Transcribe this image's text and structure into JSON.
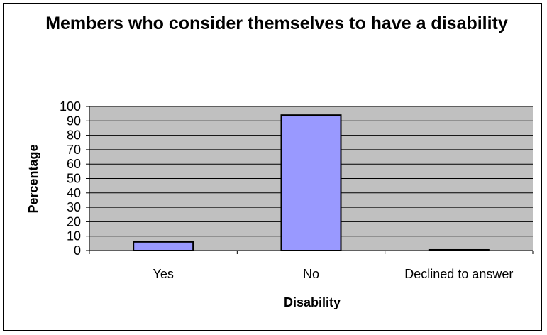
{
  "chart_data": {
    "type": "bar",
    "title": "Members who consider themselves to have a disability",
    "xlabel": "Disability",
    "ylabel": "Percentage",
    "categories": [
      "Yes",
      "No",
      "Declined to answer"
    ],
    "values": [
      6,
      94,
      0.5
    ],
    "ylim": [
      0,
      100
    ],
    "yticks": [
      "0",
      "10",
      "20",
      "30",
      "40",
      "50",
      "60",
      "70",
      "80",
      "90",
      "100"
    ],
    "grid": true,
    "legend": "none",
    "colors": {
      "plot_background": "#c0c0c0",
      "bar_fill": "#9999ff",
      "bar_stroke": "#000000",
      "gridline": "#000000"
    }
  }
}
